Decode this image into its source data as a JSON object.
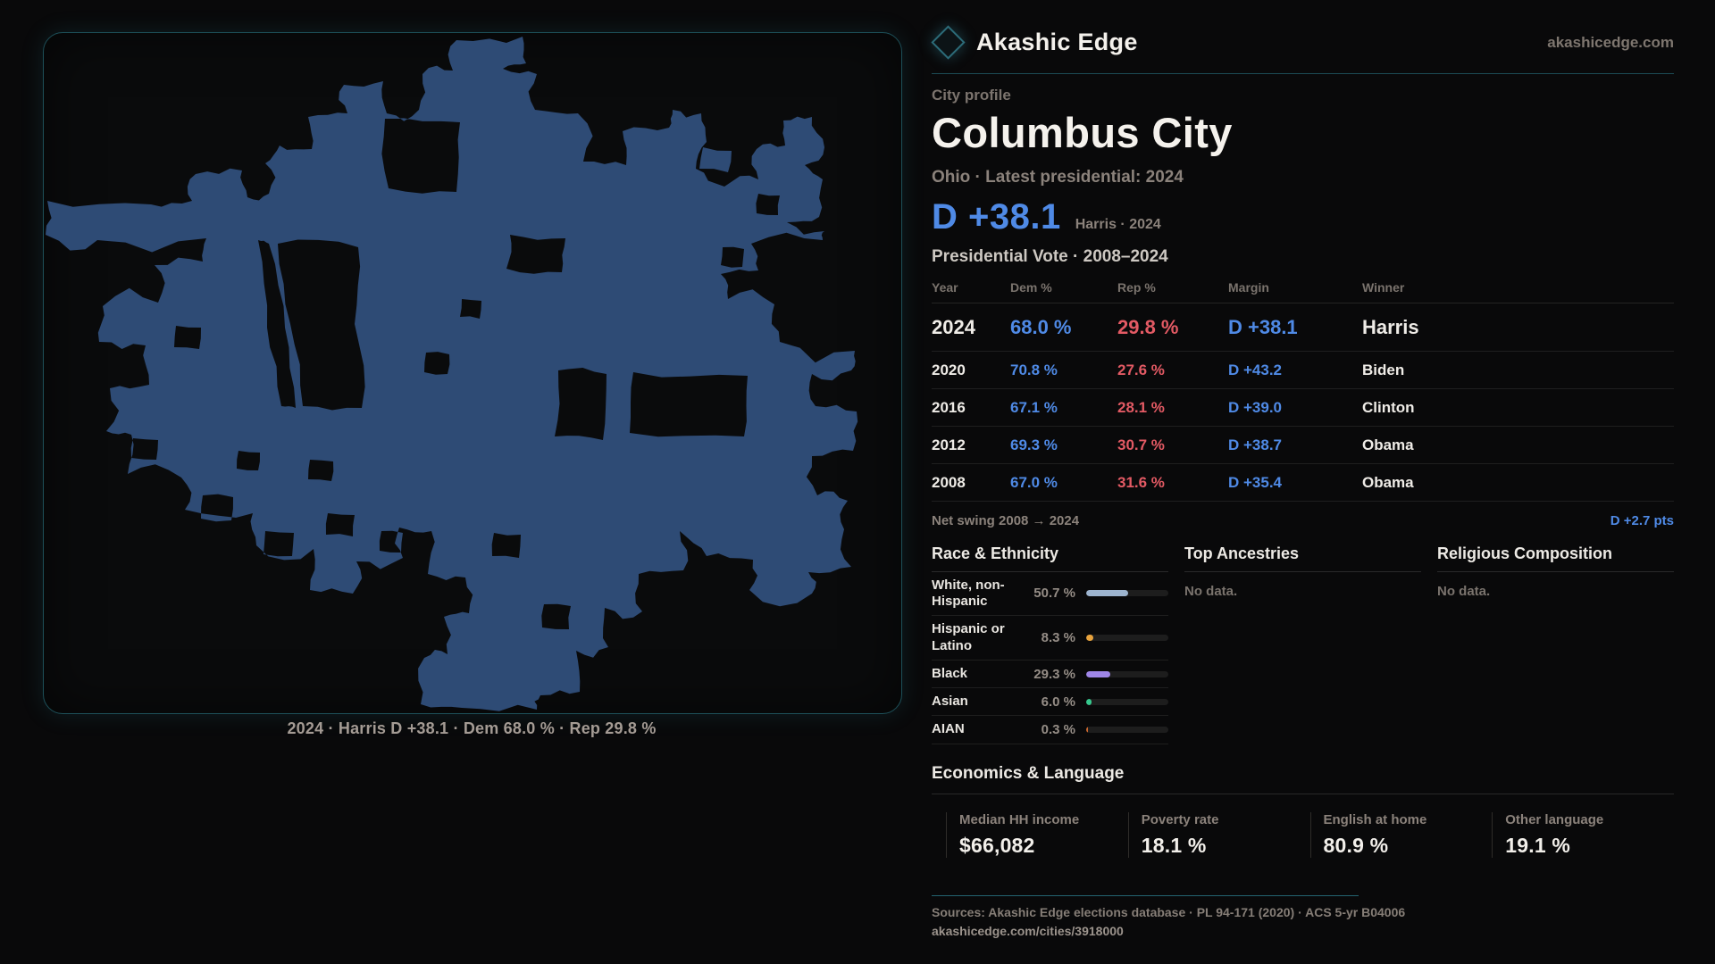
{
  "brand": {
    "name": "Akashic Edge",
    "domain": "akashicedge.com"
  },
  "profile": {
    "kicker": "City profile",
    "title": "Columbus City",
    "subtitle": "Ohio · Latest presidential: 2024",
    "headline_margin": "D +38.1",
    "headline_note": "Harris · 2024"
  },
  "map": {
    "caption": "2024 · Harris D +38.1 · Dem 68.0 % · Rep 29.8 %",
    "fill_color": "#2e4b75",
    "panel_border_color": "#1d4f58"
  },
  "colors": {
    "dem_blue": "#4f8ae6",
    "rep_red": "#e35a64",
    "accent_teal": "#1c4b55"
  },
  "vote_table": {
    "title": "Presidential Vote · 2008–2024",
    "columns": [
      "Year",
      "Dem %",
      "Rep %",
      "Margin",
      "Winner"
    ],
    "rows": [
      {
        "year": "2024",
        "dem": "68.0 %",
        "rep": "29.8 %",
        "margin": "D +38.1",
        "winner": "Harris"
      },
      {
        "year": "2020",
        "dem": "70.8 %",
        "rep": "27.6 %",
        "margin": "D +43.2",
        "winner": "Biden"
      },
      {
        "year": "2016",
        "dem": "67.1 %",
        "rep": "28.1 %",
        "margin": "D +39.0",
        "winner": "Clinton"
      },
      {
        "year": "2012",
        "dem": "69.3 %",
        "rep": "30.7 %",
        "margin": "D +38.7",
        "winner": "Obama"
      },
      {
        "year": "2008",
        "dem": "67.0 %",
        "rep": "31.6 %",
        "margin": "D +35.4",
        "winner": "Obama"
      }
    ],
    "net_swing_label": "Net swing 2008 → 2024",
    "net_swing_value": "D +2.7 pts"
  },
  "race": {
    "title": "Race & Ethnicity",
    "rows": [
      {
        "label": "White, non-Hispanic",
        "value": "50.7 %",
        "pct": 50.7,
        "color": "#9db4cf"
      },
      {
        "label": "Hispanic or Latino",
        "value": "8.3 %",
        "pct": 8.3,
        "color": "#e8a33d"
      },
      {
        "label": "Black",
        "value": "29.3 %",
        "pct": 29.3,
        "color": "#9f86e8"
      },
      {
        "label": "Asian",
        "value": "6.0 %",
        "pct": 6.0,
        "color": "#36c98e"
      },
      {
        "label": "AIAN",
        "value": "0.3 %",
        "pct": 0.3,
        "color": "#c9662e"
      }
    ]
  },
  "ancestries": {
    "title": "Top Ancestries",
    "empty": "No data."
  },
  "religion": {
    "title": "Religious Composition",
    "empty": "No data."
  },
  "economics": {
    "title": "Economics & Language",
    "stats": [
      {
        "label": "Median HH income",
        "value": "$66,082"
      },
      {
        "label": "Poverty rate",
        "value": "18.1 %"
      },
      {
        "label": "English at home",
        "value": "80.9 %"
      },
      {
        "label": "Other language",
        "value": "19.1 %"
      }
    ]
  },
  "footer": {
    "sources": "Sources: Akashic Edge elections database · PL 94-171 (2020) · ACS 5-yr B04006",
    "permalink": "akashicedge.com/cities/3918000"
  }
}
